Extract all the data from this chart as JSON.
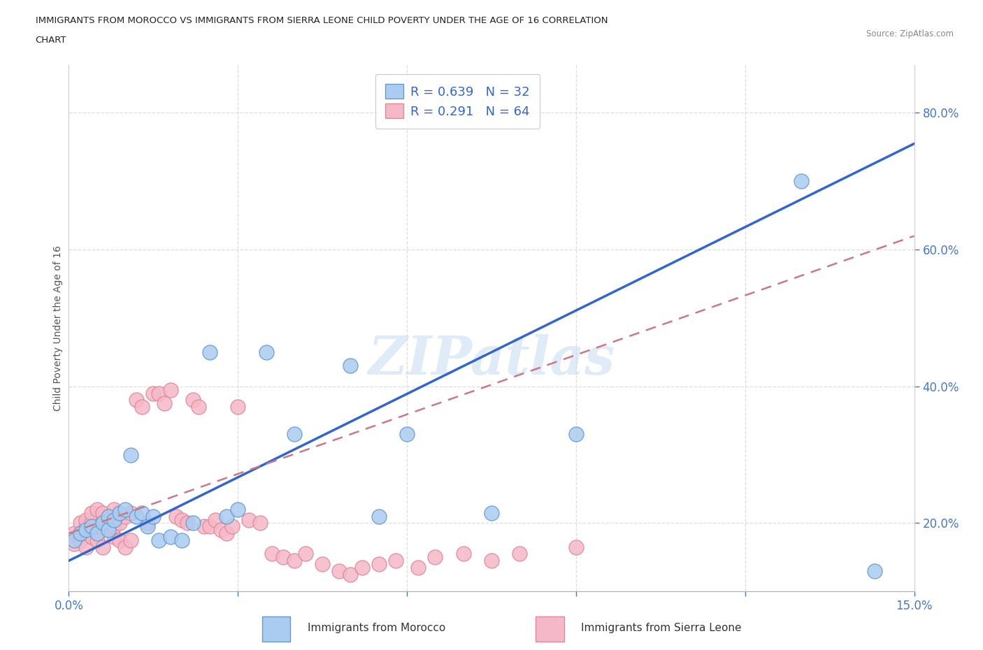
{
  "title": "IMMIGRANTS FROM MOROCCO VS IMMIGRANTS FROM SIERRA LEONE CHILD POVERTY UNDER THE AGE OF 16 CORRELATION\nCHART",
  "source": "Source: ZipAtlas.com",
  "ylabel": "Child Poverty Under the Age of 16",
  "xlim": [
    0.0,
    0.15
  ],
  "ylim": [
    0.1,
    0.87
  ],
  "yticks_right": [
    0.2,
    0.4,
    0.6,
    0.8
  ],
  "ytick_labels_right": [
    "20.0%",
    "40.0%",
    "60.0%",
    "80.0%"
  ],
  "morocco_color": "#aaccf0",
  "morocco_edge": "#6699cc",
  "sierra_color": "#f5b8c8",
  "sierra_edge": "#dd8899",
  "morocco_R": 0.639,
  "morocco_N": 32,
  "sierra_R": 0.291,
  "sierra_N": 64,
  "watermark": "ZIPatlas",
  "legend_label_morocco": "Immigrants from Morocco",
  "legend_label_sierra": "Immigrants from Sierra Leone",
  "background_color": "#ffffff",
  "grid_color": "#dddddd",
  "morocco_line_x": [
    0.0,
    0.15
  ],
  "morocco_line_y": [
    0.145,
    0.755
  ],
  "sierra_line_x": [
    0.0,
    0.15
  ],
  "sierra_line_y": [
    0.185,
    0.62
  ],
  "morocco_scatter_x": [
    0.001,
    0.002,
    0.003,
    0.004,
    0.005,
    0.006,
    0.007,
    0.007,
    0.008,
    0.009,
    0.01,
    0.011,
    0.012,
    0.013,
    0.014,
    0.015,
    0.016,
    0.018,
    0.02,
    0.022,
    0.025,
    0.028,
    0.03,
    0.035,
    0.04,
    0.05,
    0.055,
    0.06,
    0.075,
    0.09,
    0.13,
    0.143
  ],
  "morocco_scatter_y": [
    0.175,
    0.185,
    0.19,
    0.195,
    0.185,
    0.2,
    0.21,
    0.19,
    0.205,
    0.215,
    0.22,
    0.3,
    0.21,
    0.215,
    0.195,
    0.21,
    0.175,
    0.18,
    0.175,
    0.2,
    0.45,
    0.21,
    0.22,
    0.45,
    0.33,
    0.43,
    0.21,
    0.33,
    0.215,
    0.33,
    0.7,
    0.13
  ],
  "sierra_scatter_x": [
    0.001,
    0.001,
    0.002,
    0.002,
    0.003,
    0.003,
    0.003,
    0.004,
    0.004,
    0.004,
    0.005,
    0.005,
    0.005,
    0.006,
    0.006,
    0.006,
    0.007,
    0.007,
    0.008,
    0.008,
    0.008,
    0.009,
    0.009,
    0.01,
    0.01,
    0.011,
    0.011,
    0.012,
    0.013,
    0.014,
    0.015,
    0.016,
    0.017,
    0.018,
    0.019,
    0.02,
    0.021,
    0.022,
    0.023,
    0.024,
    0.025,
    0.026,
    0.027,
    0.028,
    0.029,
    0.03,
    0.032,
    0.034,
    0.036,
    0.038,
    0.04,
    0.042,
    0.045,
    0.048,
    0.05,
    0.052,
    0.055,
    0.058,
    0.062,
    0.065,
    0.07,
    0.075,
    0.08,
    0.09
  ],
  "sierra_scatter_y": [
    0.185,
    0.17,
    0.175,
    0.2,
    0.165,
    0.195,
    0.205,
    0.18,
    0.2,
    0.215,
    0.185,
    0.175,
    0.22,
    0.165,
    0.2,
    0.215,
    0.19,
    0.205,
    0.18,
    0.195,
    0.22,
    0.175,
    0.2,
    0.165,
    0.21,
    0.175,
    0.215,
    0.38,
    0.37,
    0.2,
    0.39,
    0.39,
    0.375,
    0.395,
    0.21,
    0.205,
    0.2,
    0.38,
    0.37,
    0.195,
    0.195,
    0.205,
    0.19,
    0.185,
    0.195,
    0.37,
    0.205,
    0.2,
    0.155,
    0.15,
    0.145,
    0.155,
    0.14,
    0.13,
    0.125,
    0.135,
    0.14,
    0.145,
    0.135,
    0.15,
    0.155,
    0.145,
    0.155,
    0.165
  ]
}
